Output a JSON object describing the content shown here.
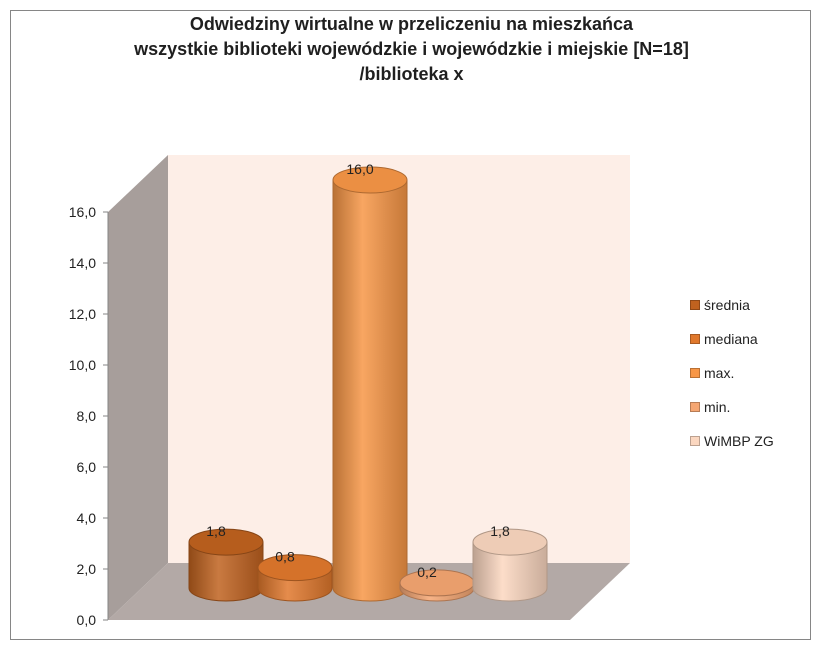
{
  "chart_data": {
    "type": "bar",
    "title_lines": [
      "Odwiedziny wirtualne w przeliczeniu na mieszkańca",
      "wszystkie biblioteki wojewódzkie i wojewódzkie i miejskie  [N=18]",
      "/biblioteka x"
    ],
    "ylim": [
      0,
      16
    ],
    "yticks": [
      "0,0",
      "2,0",
      "4,0",
      "6,0",
      "8,0",
      "10,0",
      "12,0",
      "14,0",
      "16,0"
    ],
    "grid": false,
    "legend_position": "right",
    "series": [
      {
        "name": "średnia",
        "value": 1.8,
        "label": "1,8",
        "color": "#C0621F"
      },
      {
        "name": "mediana",
        "value": 0.8,
        "label": "0,8",
        "color": "#E0782C"
      },
      {
        "name": "max.",
        "value": 16.0,
        "label": "16,0",
        "color": "#F79646"
      },
      {
        "name": "min.",
        "value": 0.2,
        "label": "0,2",
        "color": "#F5A672"
      },
      {
        "name": "WiMBP ZG",
        "value": 1.8,
        "label": "1,8",
        "color": "#FBD7C0"
      }
    ]
  }
}
